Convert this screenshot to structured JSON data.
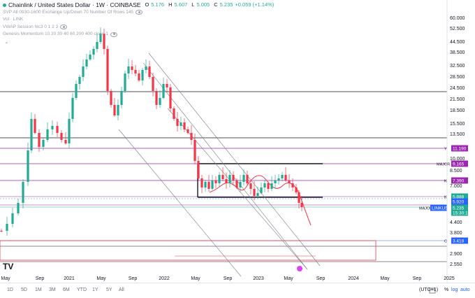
{
  "legend": {
    "symbol": "Chainlink / United States Dollar · 1W · COINBASE",
    "open_label": "O",
    "open": "5.176",
    "high_label": "H",
    "high": "5.607",
    "low_label": "L",
    "low": "5.005",
    "close_label": "C",
    "close": "5.235",
    "change": "+0.059 (+1.14%)",
    "indicators": [
      "SVP All 0930-1600 Exchange Up/Down 70 Number Of Rows 145",
      "Vol · LINK",
      "VWAP Session hlc3 0 1 2 3",
      "Genesis Momentum 10 20 30 40 60 200 400 close 1"
    ]
  },
  "colors": {
    "up": "#22ab94",
    "down": "#f23645",
    "magenta": "#9c27b0",
    "axis_text": "#131722",
    "price_tag": "#2962ff"
  },
  "price_axis": {
    "ticks": [
      "60.000",
      "52.500",
      "44.500",
      "38.500",
      "32.500",
      "28.500",
      "24.500",
      "21.500",
      "18.500",
      "15.500",
      "13.500",
      "10.000",
      "8.500",
      "7.000",
      "4.400",
      "3.800",
      "2.900",
      "2.550"
    ]
  },
  "time_axis": {
    "ticks": [
      "May",
      "Sep",
      "2021",
      "May",
      "Sep",
      "2022",
      "May",
      "Sep",
      "2023",
      "May",
      "Sep",
      "2024",
      "May",
      "Sep",
      "2025"
    ]
  },
  "level_labels": [
    {
      "text": "Y",
      "value": "11.190",
      "color": "#9c27b0"
    },
    {
      "text": "MAJOR",
      "value": "9.165",
      "color": "#9c27b0"
    },
    {
      "text": "K",
      "value": "7.390",
      "color": "#9c27b0"
    },
    {
      "text": "K",
      "value": "5.888",
      "color": "#22ab94"
    },
    {
      "text": "",
      "value": "5.920",
      "color": "#2962ff"
    },
    {
      "text": "MAJOR",
      "value": "LINKUSD",
      "color": "#2962ff"
    },
    {
      "text": "",
      "value": "5.235",
      "color": "#22ab94"
    },
    {
      "text": "",
      "value": "15:30:12",
      "color": "#22ab94"
    },
    {
      "text": "O",
      "value": "3.418",
      "color": "#2962ff"
    }
  ],
  "bottom_bar": {
    "timeframes": [
      "1D",
      "5D",
      "1M",
      "3M",
      "6M",
      "YTD",
      "1Y",
      "5Y",
      "All"
    ],
    "timezone": "(UTC+1)",
    "percent": "%",
    "log": "log",
    "auto": "auto"
  }
}
